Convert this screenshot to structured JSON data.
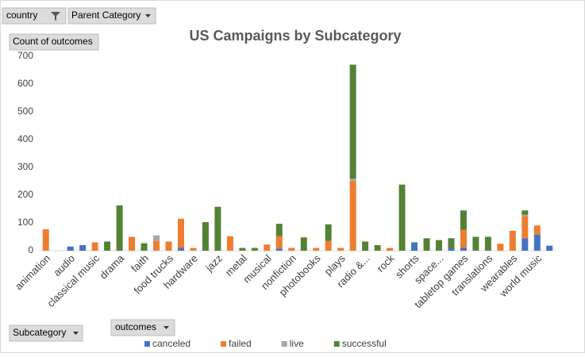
{
  "chart_data": {
    "type": "stacked_bar",
    "title": "US Campaigns by Subcategory",
    "pivot_fields": {
      "filter": "country",
      "column": "Parent Category",
      "values": "Count of outcomes",
      "axis": "Subcategory",
      "legend": "outcomes"
    },
    "categories": [
      "animation",
      null,
      "audio",
      null,
      "classical music",
      null,
      "drama",
      null,
      "faith",
      null,
      "food trucks",
      null,
      "hardware",
      null,
      "jazz",
      null,
      "metal",
      null,
      "musical",
      null,
      "nonfiction",
      null,
      "photobooks",
      null,
      "plays",
      null,
      "radio &...",
      null,
      "rock",
      null,
      "shorts",
      null,
      "space...",
      null,
      "tabletop games",
      null,
      "translations",
      null,
      "wearables",
      null,
      "world music",
      null
    ],
    "series": [
      {
        "name": "canceled",
        "color": "#4472c4",
        "values": [
          0,
          0,
          15,
          20,
          0,
          0,
          0,
          0,
          0,
          0,
          0,
          10,
          0,
          0,
          0,
          0,
          0,
          0,
          0,
          8,
          0,
          0,
          0,
          0,
          0,
          0,
          0,
          0,
          0,
          0,
          30,
          0,
          0,
          10,
          10,
          0,
          0,
          0,
          0,
          45,
          58,
          18
        ]
      },
      {
        "name": "failed",
        "color": "#ed7d31",
        "values": [
          77,
          0,
          0,
          0,
          30,
          0,
          0,
          50,
          0,
          35,
          33,
          105,
          10,
          0,
          0,
          52,
          0,
          0,
          22,
          45,
          10,
          0,
          10,
          35,
          10,
          250,
          0,
          0,
          10,
          0,
          0,
          0,
          0,
          0,
          65,
          0,
          0,
          25,
          72,
          80,
          33,
          0
        ]
      },
      {
        "name": "live",
        "color": "#a5a5a5",
        "values": [
          0,
          0,
          0,
          0,
          0,
          0,
          0,
          0,
          0,
          20,
          0,
          0,
          0,
          0,
          0,
          0,
          0,
          0,
          0,
          0,
          0,
          0,
          0,
          0,
          0,
          10,
          0,
          0,
          0,
          0,
          0,
          0,
          0,
          0,
          0,
          0,
          0,
          0,
          0,
          5,
          0,
          0
        ]
      },
      {
        "name": "successful",
        "color": "#548235",
        "values": [
          0,
          0,
          0,
          0,
          0,
          33,
          163,
          0,
          27,
          0,
          0,
          0,
          0,
          103,
          158,
          0,
          10,
          10,
          0,
          44,
          0,
          48,
          0,
          60,
          0,
          410,
          33,
          20,
          0,
          238,
          0,
          45,
          38,
          35,
          70,
          50,
          50,
          0,
          0,
          15,
          0,
          0
        ]
      }
    ],
    "ylim": [
      0,
      700
    ],
    "yticks": [
      0,
      100,
      200,
      300,
      400,
      500,
      600,
      700
    ],
    "grid": false,
    "legend": "bottom"
  }
}
